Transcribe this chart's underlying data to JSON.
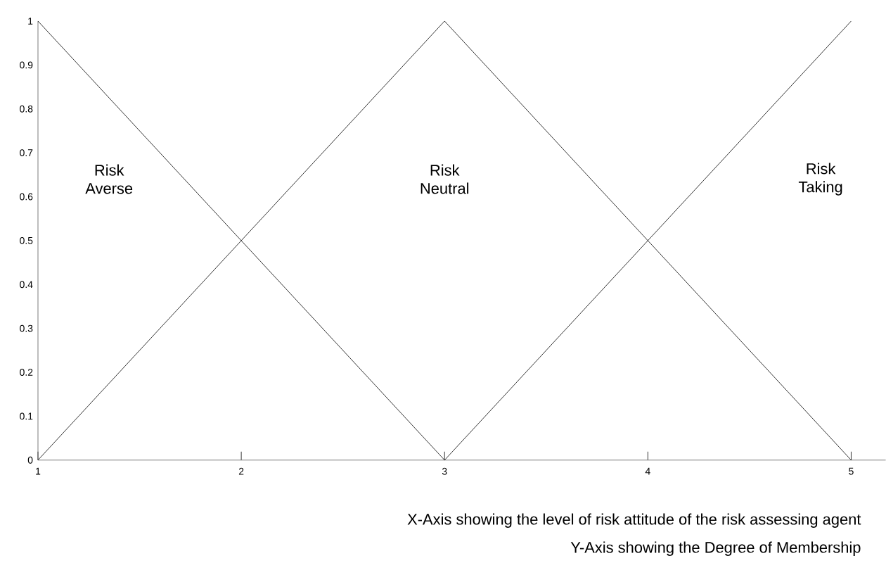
{
  "chart_data": {
    "type": "line",
    "xlabel": "X-Axis showing the level of risk attitude of the risk assessing agent",
    "annotations": [
      "Risk Averse",
      "Risk Neutral",
      "Risk Taking",
      "Y-Axis showing the Degree of Membership"
    ],
    "series": [
      {
        "color": "#000000",
        "x": [
          1,
          3
        ],
        "values": [
          1,
          0
        ]
      },
      {
        "color": "#000000",
        "x": [
          1,
          3,
          5
        ],
        "values": [
          0,
          1,
          0
        ]
      },
      {
        "color": "#000000",
        "x": [
          3,
          5
        ],
        "values": [
          0,
          1
        ]
      }
    ],
    "xlim": [
      1,
      5.17
    ],
    "ylim": [
      0,
      1
    ],
    "xticks": [
      1,
      2,
      3,
      4,
      5
    ],
    "yticks": [
      0,
      0.1,
      0.2,
      0.3,
      0.4,
      0.5,
      0.6,
      0.7,
      0.8,
      0.9,
      1
    ],
    "grid": false,
    "marker": "none",
    "line_style": "solid"
  }
}
